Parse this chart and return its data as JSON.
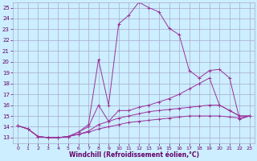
{
  "background_color": "#cceeff",
  "grid_color": "#aaaacc",
  "line_color": "#993399",
  "xlabel": "Windchill (Refroidissement éolien,°C)",
  "xlabel_color": "#660066",
  "tick_color": "#660066",
  "xlim": [
    -0.5,
    23.5
  ],
  "ylim": [
    12.5,
    25.5
  ],
  "yticks": [
    13,
    14,
    15,
    16,
    17,
    18,
    19,
    20,
    21,
    22,
    23,
    24,
    25
  ],
  "xticks": [
    0,
    1,
    2,
    3,
    4,
    5,
    6,
    7,
    8,
    9,
    10,
    11,
    12,
    13,
    14,
    15,
    16,
    17,
    18,
    19,
    20,
    21,
    22,
    23
  ],
  "curves": [
    {
      "x": [
        0,
        1,
        2,
        3,
        4,
        5,
        6,
        7,
        8,
        9,
        10,
        11,
        12,
        13,
        14,
        15,
        16,
        17,
        18,
        19,
        20,
        21,
        22,
        23
      ],
      "y": [
        14.1,
        13.8,
        13.1,
        13.0,
        13.0,
        13.1,
        13.5,
        14.2,
        20.2,
        16.0,
        23.5,
        24.3,
        25.5,
        25.0,
        24.6,
        23.1,
        22.5,
        19.2,
        18.5,
        19.2,
        19.3,
        18.5,
        14.7,
        15.0
      ]
    },
    {
      "x": [
        0,
        1,
        2,
        3,
        4,
        5,
        6,
        7,
        8,
        9,
        10,
        11,
        12,
        13,
        14,
        15,
        16,
        17,
        18,
        19,
        20,
        21,
        22,
        23
      ],
      "y": [
        14.1,
        13.8,
        13.1,
        13.0,
        13.0,
        13.1,
        13.5,
        14.0,
        16.0,
        14.5,
        15.5,
        15.5,
        15.8,
        16.0,
        16.3,
        16.6,
        17.0,
        17.5,
        18.0,
        18.5,
        16.0,
        15.5,
        15.0,
        15.0
      ]
    },
    {
      "x": [
        0,
        1,
        2,
        3,
        4,
        5,
        6,
        7,
        8,
        9,
        10,
        11,
        12,
        13,
        14,
        15,
        16,
        17,
        18,
        19,
        20,
        21,
        22,
        23
      ],
      "y": [
        14.1,
        13.8,
        13.1,
        13.0,
        13.0,
        13.1,
        13.3,
        13.6,
        14.2,
        14.5,
        14.8,
        15.0,
        15.2,
        15.4,
        15.5,
        15.6,
        15.7,
        15.8,
        15.9,
        16.0,
        16.0,
        15.5,
        15.0,
        15.0
      ]
    },
    {
      "x": [
        0,
        1,
        2,
        3,
        4,
        5,
        6,
        7,
        8,
        9,
        10,
        11,
        12,
        13,
        14,
        15,
        16,
        17,
        18,
        19,
        20,
        21,
        22,
        23
      ],
      "y": [
        14.1,
        13.8,
        13.1,
        13.0,
        13.0,
        13.1,
        13.3,
        13.5,
        13.8,
        14.0,
        14.2,
        14.4,
        14.5,
        14.6,
        14.7,
        14.8,
        14.9,
        15.0,
        15.0,
        15.0,
        15.0,
        14.9,
        14.8,
        15.0
      ]
    }
  ]
}
